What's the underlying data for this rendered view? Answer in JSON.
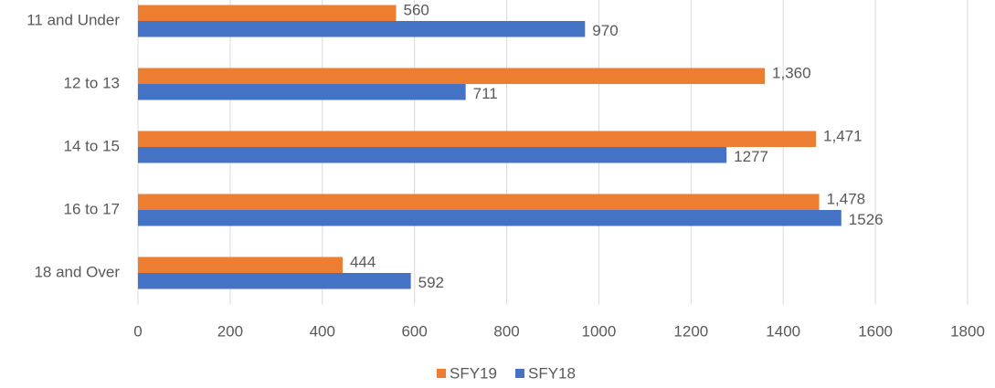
{
  "chart_data": {
    "type": "hbar",
    "categories": [
      "11 and Under",
      "12 to 13",
      "14 to 15",
      "16 to 17",
      "18 and Over"
    ],
    "series": [
      {
        "name": "SFY19",
        "color": "#ED7D31",
        "values": [
          560,
          1360,
          1471,
          1478,
          444
        ],
        "value_labels": [
          "560",
          "1,360",
          "1,471",
          "1,478",
          "444"
        ]
      },
      {
        "name": "SFY18",
        "color": "#4472C4",
        "values": [
          970,
          711,
          1277,
          1526,
          592
        ]
      }
    ],
    "xlim": [
      0,
      1800
    ],
    "xticks": [
      0,
      200,
      400,
      600,
      800,
      1000,
      1200,
      1400,
      1600,
      1800
    ],
    "grid": true,
    "legend": "bottom"
  }
}
